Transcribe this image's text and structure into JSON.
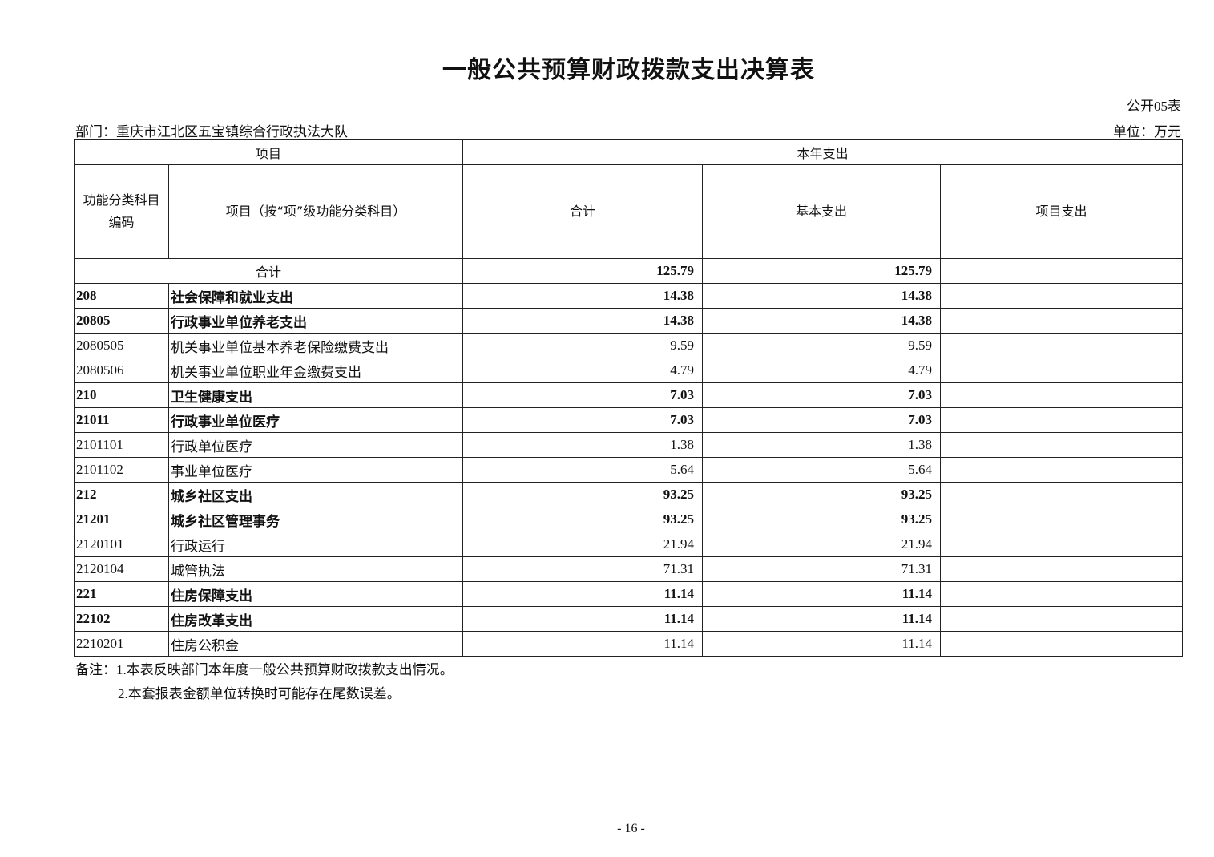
{
  "title": "一般公共预算财政拨款支出决算表",
  "form_no": "公开05表",
  "department": "部门：重庆市江北区五宝镇综合行政执法大队",
  "unit": "单位：万元",
  "headers": {
    "project": "项目",
    "current_year": "本年支出",
    "code": "功能分类科目编码",
    "item": "项目（按“项”级功能分类科目）",
    "total": "合计",
    "basic": "基本支出",
    "project_exp": "项目支出"
  },
  "total_row": {
    "label": "合计",
    "total": "125.79",
    "basic": "125.79",
    "project": ""
  },
  "rows": [
    {
      "code": "208",
      "name": "社会保障和就业支出",
      "total": "14.38",
      "basic": "14.38",
      "project": "",
      "bold": true
    },
    {
      "code": "20805",
      "name": "行政事业单位养老支出",
      "total": "14.38",
      "basic": "14.38",
      "project": "",
      "bold": true
    },
    {
      "code": "2080505",
      "name": "机关事业单位基本养老保险缴费支出",
      "total": "9.59",
      "basic": "9.59",
      "project": "",
      "bold": false
    },
    {
      "code": "2080506",
      "name": "机关事业单位职业年金缴费支出",
      "total": "4.79",
      "basic": "4.79",
      "project": "",
      "bold": false
    },
    {
      "code": "210",
      "name": "卫生健康支出",
      "total": "7.03",
      "basic": "7.03",
      "project": "",
      "bold": true
    },
    {
      "code": "21011",
      "name": "行政事业单位医疗",
      "total": "7.03",
      "basic": "7.03",
      "project": "",
      "bold": true
    },
    {
      "code": "2101101",
      "name": "行政单位医疗",
      "total": "1.38",
      "basic": "1.38",
      "project": "",
      "bold": false
    },
    {
      "code": "2101102",
      "name": "事业单位医疗",
      "total": "5.64",
      "basic": "5.64",
      "project": "",
      "bold": false
    },
    {
      "code": "212",
      "name": "城乡社区支出",
      "total": "93.25",
      "basic": "93.25",
      "project": "",
      "bold": true
    },
    {
      "code": "21201",
      "name": "城乡社区管理事务",
      "total": "93.25",
      "basic": "93.25",
      "project": "",
      "bold": true
    },
    {
      "code": "2120101",
      "name": "行政运行",
      "total": "21.94",
      "basic": "21.94",
      "project": "",
      "bold": false
    },
    {
      "code": "2120104",
      "name": "城管执法",
      "total": "71.31",
      "basic": "71.31",
      "project": "",
      "bold": false
    },
    {
      "code": "221",
      "name": "住房保障支出",
      "total": "11.14",
      "basic": "11.14",
      "project": "",
      "bold": true
    },
    {
      "code": "22102",
      "name": "住房改革支出",
      "total": "11.14",
      "basic": "11.14",
      "project": "",
      "bold": true
    },
    {
      "code": "2210201",
      "name": "住房公积金",
      "total": "11.14",
      "basic": "11.14",
      "project": "",
      "bold": false
    }
  ],
  "notes": [
    "备注：1.本表反映部门本年度一般公共预算财政拨款支出情况。",
    "2.本套报表金额单位转换时可能存在尾数误差。"
  ],
  "page_number": "- 16 -"
}
